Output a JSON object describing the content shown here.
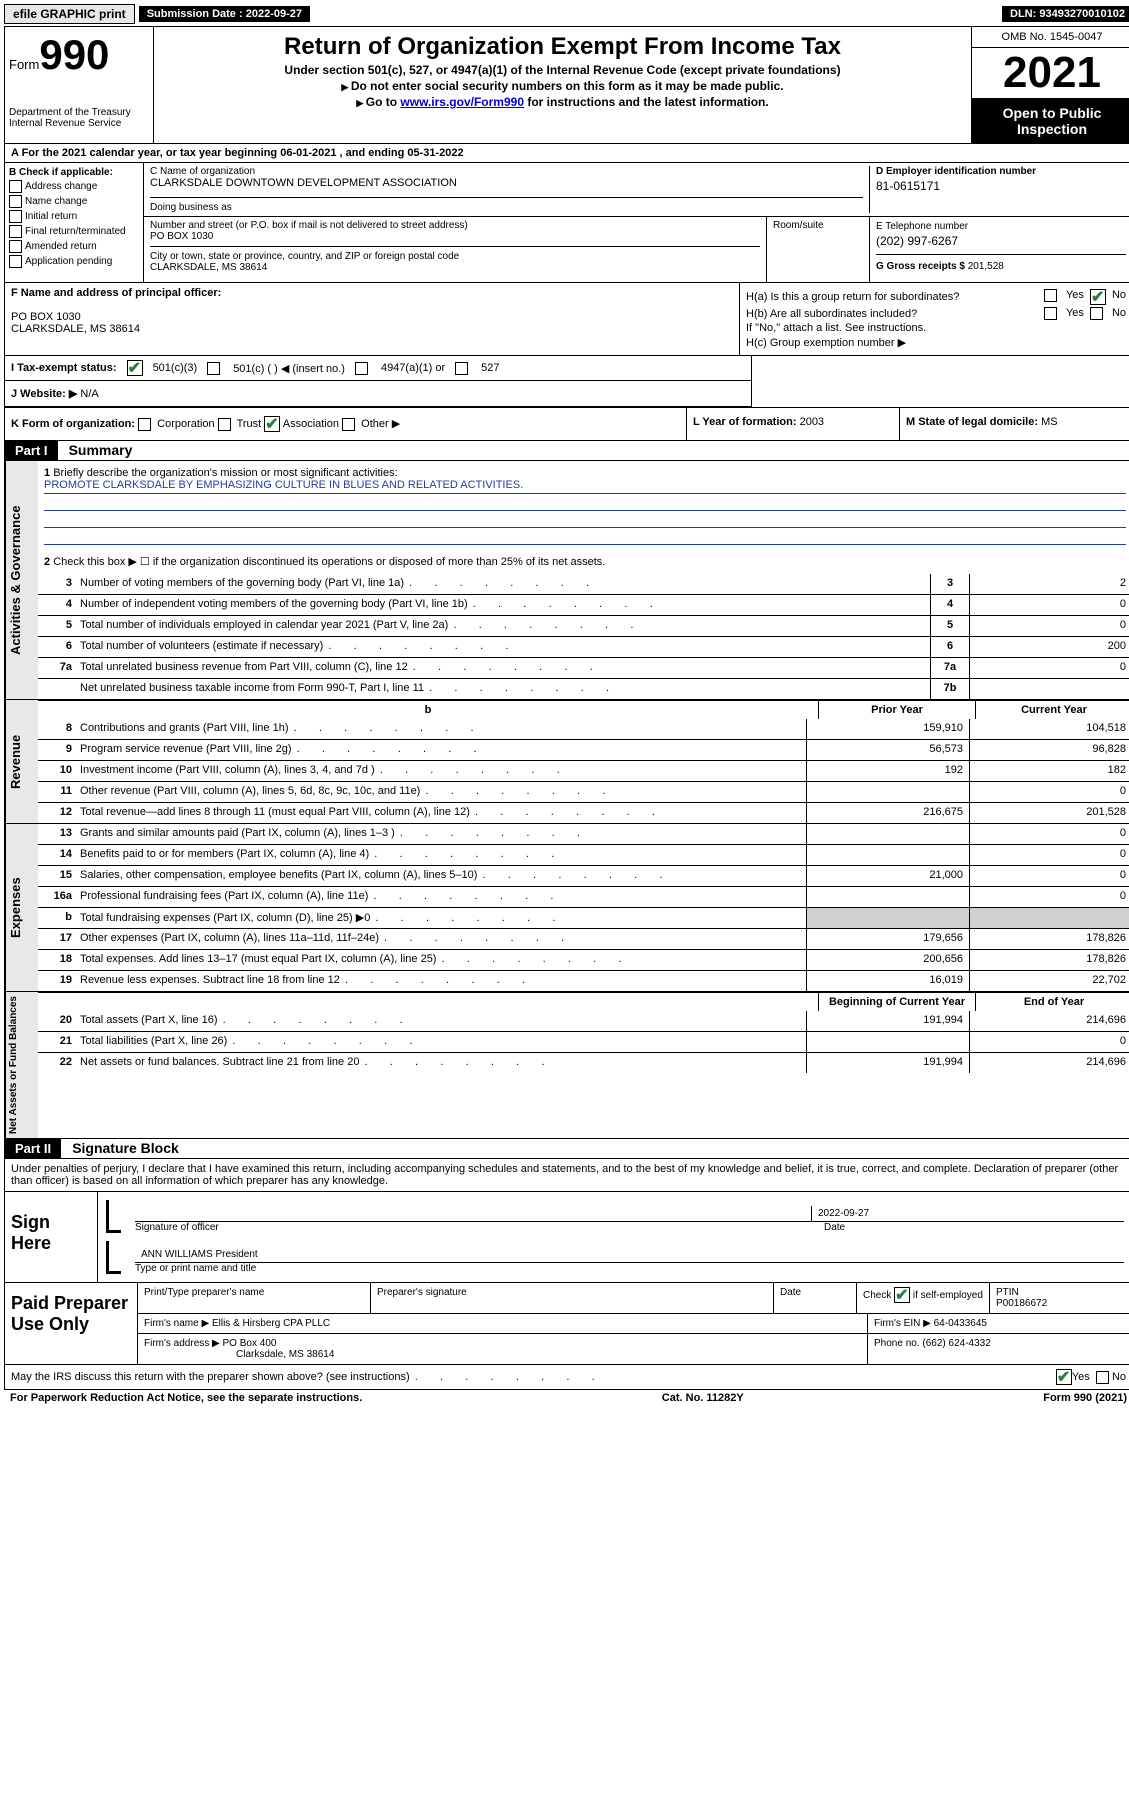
{
  "top": {
    "efile": "efile GRAPHIC print",
    "sub_label": "Submission Date :",
    "sub_date": "2022-09-27",
    "dln_label": "DLN:",
    "dln": "93493270010102"
  },
  "header": {
    "form_word": "Form",
    "form_num": "990",
    "title": "Return of Organization Exempt From Income Tax",
    "sub1": "Under section 501(c), 527, or 4947(a)(1) of the Internal Revenue Code (except private foundations)",
    "sub2": "Do not enter social security numbers on this form as it may be made public.",
    "sub3_pre": "Go to ",
    "sub3_link": "www.irs.gov/Form990",
    "sub3_post": " for instructions and the latest information.",
    "dept": "Department of the Treasury",
    "irs": "Internal Revenue Service",
    "omb": "OMB No. 1545-0047",
    "year": "2021",
    "inspection": "Open to Public Inspection"
  },
  "rowA": {
    "label": "A For the 2021 calendar year, or tax year beginning ",
    "begin": "06-01-2021",
    "mid": " , and ending ",
    "end": "05-31-2022"
  },
  "boxB": {
    "title": "B Check if applicable:",
    "items": [
      "Address change",
      "Name change",
      "Initial return",
      "Final return/terminated",
      "Amended return",
      "Application pending"
    ]
  },
  "boxC": {
    "label": "C Name of organization",
    "name": "CLARKSDALE DOWNTOWN DEVELOPMENT ASSOCIATION",
    "dba_label": "Doing business as",
    "addr_label": "Number and street (or P.O. box if mail is not delivered to street address)",
    "addr": "PO BOX 1030",
    "room_label": "Room/suite",
    "city_label": "City or town, state or province, country, and ZIP or foreign postal code",
    "city": "CLARKSDALE, MS  38614"
  },
  "boxD": {
    "label": "D Employer identification number",
    "ein": "81-0615171",
    "e_label": "E Telephone number",
    "phone": "(202) 997-6267",
    "g_label": "G Gross receipts $",
    "gross": "201,528"
  },
  "rowF": {
    "label": "F Name and address of principal officer:",
    "line1": "PO BOX 1030",
    "line2": "CLARKSDALE, MS  38614"
  },
  "rowH": {
    "ha": "H(a) Is this a group return for subordinates?",
    "hb": "H(b) Are all subordinates included?",
    "hb_note": "If \"No,\" attach a list. See instructions.",
    "hc": "H(c) Group exemption number ▶"
  },
  "rowI": {
    "label": "I    Tax-exempt status:",
    "opt1": "501(c)(3)",
    "opt2": "501(c) (  ) ◀ (insert no.)",
    "opt3": "4947(a)(1) or",
    "opt4": "527"
  },
  "rowJ": {
    "label": "J   Website: ▶",
    "val": "N/A"
  },
  "rowK": {
    "k": "K Form of organization:",
    "opts": [
      "Corporation",
      "Trust",
      "Association",
      "Other ▶"
    ],
    "l_label": "L Year of formation:",
    "l_val": "2003",
    "m_label": "M State of legal domicile:",
    "m_val": "MS"
  },
  "partI": {
    "header": "Part I",
    "title": "Summary",
    "line1_label": "Briefly describe the organization's mission or most significant activities:",
    "mission": "PROMOTE CLARKSDALE BY EMPHASIZING CULTURE IN BLUES AND RELATED ACTIVITIES.",
    "line2": "Check this box ▶ ☐ if the organization discontinued its operations or disposed of more than 25% of its net assets.",
    "governance_lines": [
      {
        "n": "3",
        "t": "Number of voting members of the governing body (Part VI, line 1a)",
        "box": "3",
        "val": "2"
      },
      {
        "n": "4",
        "t": "Number of independent voting members of the governing body (Part VI, line 1b)",
        "box": "4",
        "val": "0"
      },
      {
        "n": "5",
        "t": "Total number of individuals employed in calendar year 2021 (Part V, line 2a)",
        "box": "5",
        "val": "0"
      },
      {
        "n": "6",
        "t": "Total number of volunteers (estimate if necessary)",
        "box": "6",
        "val": "200"
      },
      {
        "n": "7a",
        "t": "Total unrelated business revenue from Part VIII, column (C), line 12",
        "box": "7a",
        "val": "0"
      },
      {
        "n": "",
        "t": "Net unrelated business taxable income from Form 990-T, Part I, line 11",
        "box": "7b",
        "val": ""
      }
    ],
    "col_prior": "Prior Year",
    "col_current": "Current Year",
    "revenue": [
      {
        "n": "8",
        "t": "Contributions and grants (Part VIII, line 1h)",
        "p": "159,910",
        "c": "104,518"
      },
      {
        "n": "9",
        "t": "Program service revenue (Part VIII, line 2g)",
        "p": "56,573",
        "c": "96,828"
      },
      {
        "n": "10",
        "t": "Investment income (Part VIII, column (A), lines 3, 4, and 7d )",
        "p": "192",
        "c": "182"
      },
      {
        "n": "11",
        "t": "Other revenue (Part VIII, column (A), lines 5, 6d, 8c, 9c, 10c, and 11e)",
        "p": "",
        "c": "0"
      },
      {
        "n": "12",
        "t": "Total revenue—add lines 8 through 11 (must equal Part VIII, column (A), line 12)",
        "p": "216,675",
        "c": "201,528"
      }
    ],
    "expenses": [
      {
        "n": "13",
        "t": "Grants and similar amounts paid (Part IX, column (A), lines 1–3 )",
        "p": "",
        "c": "0"
      },
      {
        "n": "14",
        "t": "Benefits paid to or for members (Part IX, column (A), line 4)",
        "p": "",
        "c": "0"
      },
      {
        "n": "15",
        "t": "Salaries, other compensation, employee benefits (Part IX, column (A), lines 5–10)",
        "p": "21,000",
        "c": "0"
      },
      {
        "n": "16a",
        "t": "Professional fundraising fees (Part IX, column (A), line 11e)",
        "p": "",
        "c": "0"
      },
      {
        "n": "b",
        "t": "Total fundraising expenses (Part IX, column (D), line 25) ▶0",
        "p": "GREY",
        "c": "GREY"
      },
      {
        "n": "17",
        "t": "Other expenses (Part IX, column (A), lines 11a–11d, 11f–24e)",
        "p": "179,656",
        "c": "178,826"
      },
      {
        "n": "18",
        "t": "Total expenses. Add lines 13–17 (must equal Part IX, column (A), line 25)",
        "p": "200,656",
        "c": "178,826"
      },
      {
        "n": "19",
        "t": "Revenue less expenses. Subtract line 18 from line 12",
        "p": "16,019",
        "c": "22,702"
      }
    ],
    "col_begin": "Beginning of Current Year",
    "col_end": "End of Year",
    "netassets": [
      {
        "n": "20",
        "t": "Total assets (Part X, line 16)",
        "p": "191,994",
        "c": "214,696"
      },
      {
        "n": "21",
        "t": "Total liabilities (Part X, line 26)",
        "p": "",
        "c": "0"
      },
      {
        "n": "22",
        "t": "Net assets or fund balances. Subtract line 21 from line 20",
        "p": "191,994",
        "c": "214,696"
      }
    ],
    "side_gov": "Activities & Governance",
    "side_rev": "Revenue",
    "side_exp": "Expenses",
    "side_net": "Net Assets or Fund Balances"
  },
  "partII": {
    "header": "Part II",
    "title": "Signature Block",
    "perjury": "Under penalties of perjury, I declare that I have examined this return, including accompanying schedules and statements, and to the best of my knowledge and belief, it is true, correct, and complete. Declaration of preparer (other than officer) is based on all information of which preparer has any knowledge."
  },
  "sign": {
    "here": "Sign Here",
    "sig_officer": "Signature of officer",
    "date_label": "Date",
    "date_val": "2022-09-27",
    "name_title": "ANN WILLIAMS President",
    "type_name": "Type or print name and title"
  },
  "prep": {
    "title": "Paid Preparer Use Only",
    "h_name": "Print/Type preparer's name",
    "h_sig": "Preparer's signature",
    "h_date": "Date",
    "h_check": "Check ☑ if self-employed",
    "h_ptin": "PTIN",
    "ptin": "P00186672",
    "firm_name_l": "Firm's name    ▶",
    "firm_name": "Ellis & Hirsberg CPA PLLC",
    "firm_ein_l": "Firm's EIN ▶",
    "firm_ein": "64-0433645",
    "firm_addr_l": "Firm's address ▶",
    "firm_addr1": "PO Box 400",
    "firm_addr2": "Clarksdale, MS  38614",
    "phone_l": "Phone no.",
    "phone": "(662) 624-4332"
  },
  "may": "May the IRS discuss this return with the preparer shown above? (see instructions)",
  "footer": {
    "left": "For Paperwork Reduction Act Notice, see the separate instructions.",
    "mid": "Cat. No. 11282Y",
    "right": "Form 990 (2021)"
  },
  "yes": "Yes",
  "no": "No"
}
